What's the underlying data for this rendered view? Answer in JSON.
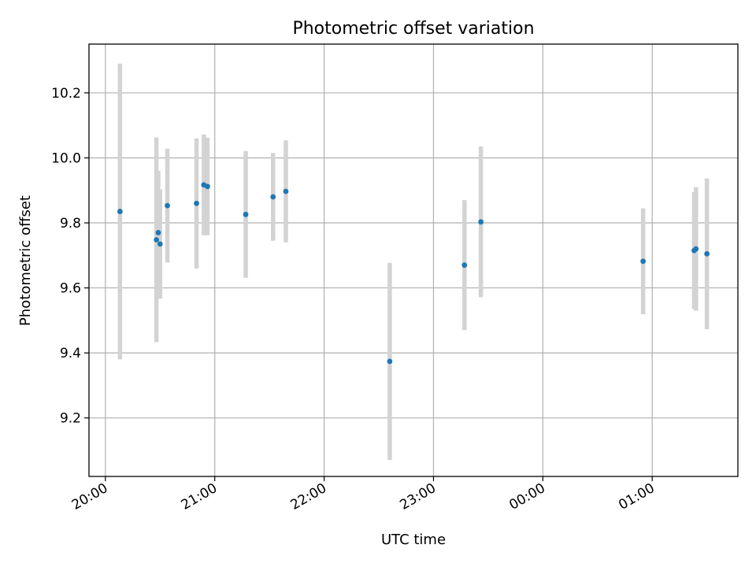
{
  "chart_data": {
    "type": "scatter",
    "title": "Photometric offset variation",
    "xlabel": "UTC time",
    "ylabel": "Photometric offset",
    "x_unit": "UTC time (hours, continuing past midnight)",
    "xlim": [
      "19:51",
      "25:47"
    ],
    "ylim": [
      9.02,
      10.35
    ],
    "x_ticks": [
      "20:00",
      "21:00",
      "22:00",
      "23:00",
      "00:00",
      "01:00"
    ],
    "y_ticks": [
      "9.2",
      "9.4",
      "9.6",
      "9.8",
      "10.0",
      "10.2"
    ],
    "grid": true,
    "error_bars": true,
    "point_color": "#1f77b4",
    "errorbar_color": "#d3d3d3",
    "points": [
      {
        "x": "20:08",
        "y": 9.835,
        "err": 0.455
      },
      {
        "x": "20:28",
        "y": 9.748,
        "err": 0.315
      },
      {
        "x": "20:29",
        "y": 9.77,
        "err": 0.19
      },
      {
        "x": "20:30",
        "y": 9.735,
        "err": 0.168
      },
      {
        "x": "20:34",
        "y": 9.853,
        "err": 0.175
      },
      {
        "x": "20:50",
        "y": 9.86,
        "err": 0.2
      },
      {
        "x": "20:54",
        "y": 9.917,
        "err": 0.155
      },
      {
        "x": "20:56",
        "y": 9.912,
        "err": 0.15
      },
      {
        "x": "21:17",
        "y": 9.826,
        "err": 0.195
      },
      {
        "x": "21:32",
        "y": 9.88,
        "err": 0.135
      },
      {
        "x": "21:39",
        "y": 9.897,
        "err": 0.157
      },
      {
        "x": "22:36",
        "y": 9.374,
        "err": 0.303
      },
      {
        "x": "23:17",
        "y": 9.67,
        "err": 0.2
      },
      {
        "x": "23:26",
        "y": 9.803,
        "err": 0.232
      },
      {
        "x": "00:55",
        "y": 9.682,
        "err": 0.163
      },
      {
        "x": "01:23",
        "y": 9.715,
        "err": 0.18
      },
      {
        "x": "01:24",
        "y": 9.72,
        "err": 0.19
      },
      {
        "x": "01:30",
        "y": 9.705,
        "err": 0.232
      }
    ]
  }
}
